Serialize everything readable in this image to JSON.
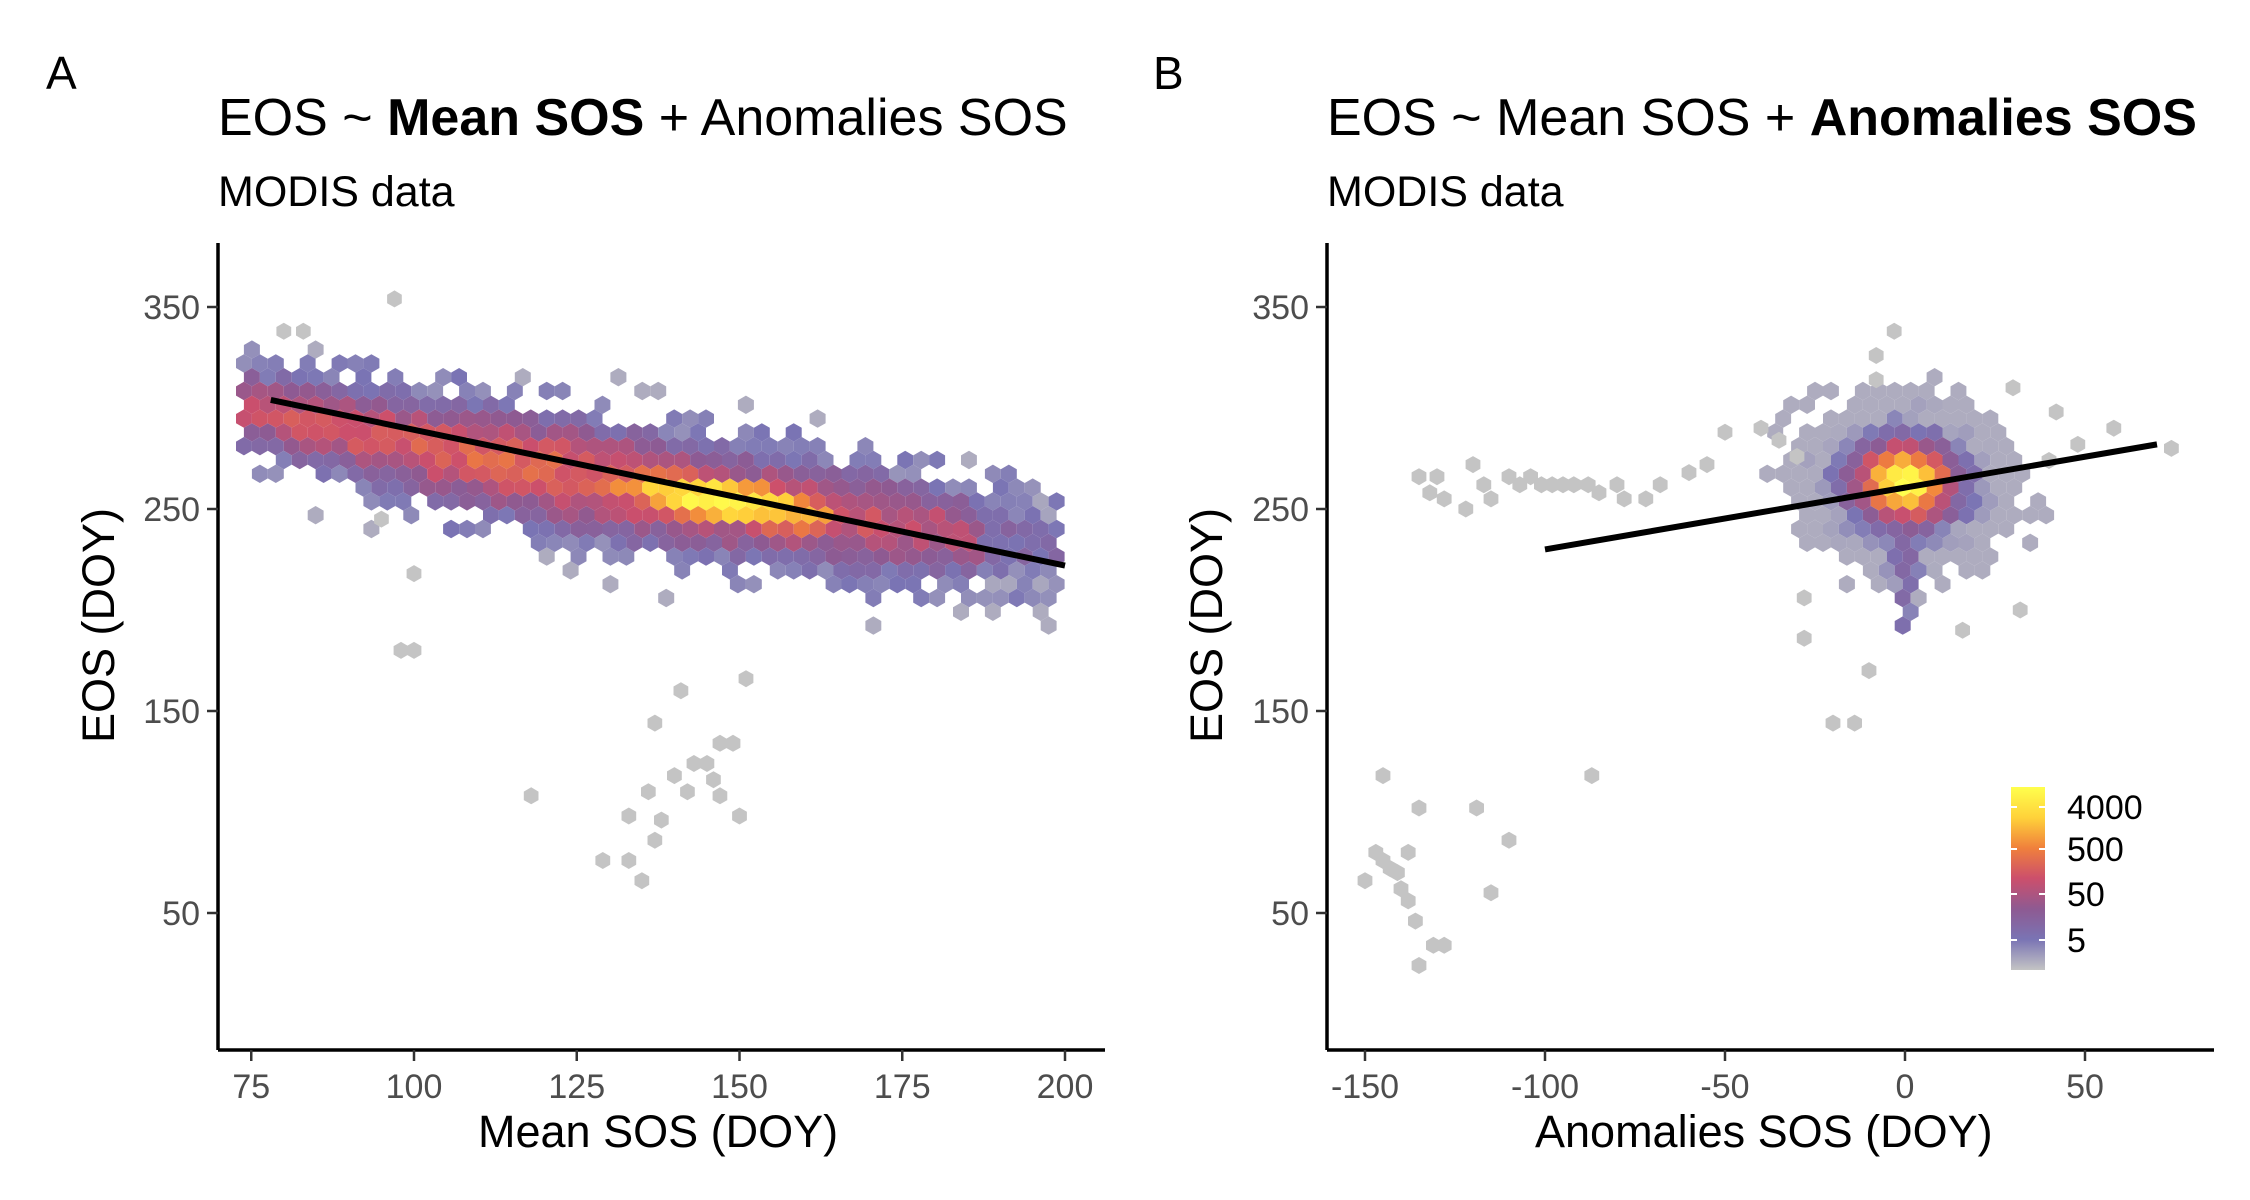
{
  "figure": {
    "panel_a": {
      "letter": "A",
      "title_prefix": "EOS ~ ",
      "title_bold": "Mean SOS",
      "title_suffix": " + Anomalies SOS",
      "subtitle": "MODIS data",
      "xlabel": "Mean SOS (DOY)",
      "ylabel": "EOS (DOY)"
    },
    "panel_b": {
      "letter": "B",
      "title_prefix": "EOS ~ Mean SOS + ",
      "title_bold": "Anomalies SOS",
      "title_suffix": "",
      "subtitle": "MODIS data",
      "xlabel": "Anomalies SOS (DOY)",
      "ylabel": "EOS (DOY)"
    }
  },
  "colorscale": {
    "stops": [
      "#c4c4c4",
      "#7a74b4",
      "#8e5a92",
      "#cc4f6c",
      "#f0803c",
      "#ffd23a",
      "#ffff4d"
    ],
    "tick_labels": [
      "4000",
      "500",
      "50",
      "5"
    ],
    "tick_values": [
      4000,
      500,
      50,
      5
    ],
    "log_scale": true
  },
  "chart_data": [
    {
      "type": "heatmap",
      "subtype": "hexbin-scatter-with-regression",
      "title": "EOS ~ Mean SOS + Anomalies SOS",
      "subtitle": "MODIS data",
      "xlabel": "Mean SOS (DOY)",
      "ylabel": "EOS (DOY)",
      "xlim": [
        72,
        208
      ],
      "ylim": [
        10,
        382
      ],
      "xticks": [
        75,
        100,
        125,
        150,
        175,
        200
      ],
      "yticks": [
        50,
        150,
        250,
        350
      ],
      "grid": false,
      "regression_line": {
        "x": [
          78,
          200
        ],
        "y": [
          304,
          222
        ]
      },
      "density_core": {
        "x": [
          78,
          103,
          125,
          150,
          175
        ],
        "y": [
          285,
          282,
          270,
          255,
          243
        ]
      },
      "sparse_points": [
        {
          "x": 97,
          "y": 354
        },
        {
          "x": 80,
          "y": 338
        },
        {
          "x": 83,
          "y": 338
        },
        {
          "x": 98,
          "y": 180
        },
        {
          "x": 100,
          "y": 180
        },
        {
          "x": 95,
          "y": 245
        },
        {
          "x": 100,
          "y": 218
        },
        {
          "x": 118,
          "y": 108
        },
        {
          "x": 129,
          "y": 76
        },
        {
          "x": 133,
          "y": 76
        },
        {
          "x": 135,
          "y": 66
        },
        {
          "x": 133,
          "y": 98
        },
        {
          "x": 136,
          "y": 110
        },
        {
          "x": 137,
          "y": 86
        },
        {
          "x": 138,
          "y": 96
        },
        {
          "x": 140,
          "y": 118
        },
        {
          "x": 142,
          "y": 110
        },
        {
          "x": 143,
          "y": 124
        },
        {
          "x": 145,
          "y": 124
        },
        {
          "x": 146,
          "y": 116
        },
        {
          "x": 147,
          "y": 108
        },
        {
          "x": 147,
          "y": 134
        },
        {
          "x": 149,
          "y": 134
        },
        {
          "x": 150,
          "y": 98
        },
        {
          "x": 137,
          "y": 144
        },
        {
          "x": 141,
          "y": 160
        },
        {
          "x": 151,
          "y": 166
        }
      ]
    },
    {
      "type": "heatmap",
      "subtype": "hexbin-scatter-with-regression",
      "title": "EOS ~ Mean SOS + Anomalies SOS",
      "subtitle": "MODIS data",
      "xlabel": "Anomalies SOS (DOY)",
      "ylabel": "EOS (DOY)",
      "xlim": [
        -160,
        85
      ],
      "ylim": [
        10,
        382
      ],
      "xticks": [
        -150,
        -100,
        -50,
        0,
        50
      ],
      "yticks": [
        50,
        150,
        250,
        350
      ],
      "grid": false,
      "regression_line": {
        "x": [
          -100,
          70
        ],
        "y": [
          230,
          282
        ]
      },
      "density_core": {
        "x": [
          0
        ],
        "y": [
          263
        ]
      },
      "sparse_points": [
        {
          "x": -135,
          "y": 266
        },
        {
          "x": -132,
          "y": 258
        },
        {
          "x": -130,
          "y": 266
        },
        {
          "x": -128,
          "y": 255
        },
        {
          "x": -122,
          "y": 250
        },
        {
          "x": -120,
          "y": 272
        },
        {
          "x": -117,
          "y": 262
        },
        {
          "x": -115,
          "y": 255
        },
        {
          "x": -110,
          "y": 266
        },
        {
          "x": -107,
          "y": 262
        },
        {
          "x": -104,
          "y": 266
        },
        {
          "x": -101,
          "y": 262
        },
        {
          "x": -98,
          "y": 262
        },
        {
          "x": -95,
          "y": 262
        },
        {
          "x": -92,
          "y": 262
        },
        {
          "x": -88,
          "y": 262
        },
        {
          "x": -85,
          "y": 258
        },
        {
          "x": -80,
          "y": 262
        },
        {
          "x": -78,
          "y": 255
        },
        {
          "x": -72,
          "y": 255
        },
        {
          "x": -68,
          "y": 262
        },
        {
          "x": -60,
          "y": 268
        },
        {
          "x": -55,
          "y": 272
        },
        {
          "x": -50,
          "y": 288
        },
        {
          "x": -40,
          "y": 290
        },
        {
          "x": -35,
          "y": 284
        },
        {
          "x": -30,
          "y": 276
        },
        {
          "x": -28,
          "y": 206
        },
        {
          "x": -28,
          "y": 186
        },
        {
          "x": -20,
          "y": 144
        },
        {
          "x": -14,
          "y": 144
        },
        {
          "x": -10,
          "y": 170
        },
        {
          "x": 16,
          "y": 190
        },
        {
          "x": 32,
          "y": 200
        },
        {
          "x": -8,
          "y": 326
        },
        {
          "x": -8,
          "y": 314
        },
        {
          "x": -3,
          "y": 338
        },
        {
          "x": 30,
          "y": 310
        },
        {
          "x": 42,
          "y": 298
        },
        {
          "x": 58,
          "y": 290
        },
        {
          "x": 74,
          "y": 280
        },
        {
          "x": 48,
          "y": 282
        },
        {
          "x": 40,
          "y": 274
        },
        {
          "x": -150,
          "y": 66
        },
        {
          "x": -147,
          "y": 80
        },
        {
          "x": -145,
          "y": 76
        },
        {
          "x": -143,
          "y": 72
        },
        {
          "x": -141,
          "y": 70
        },
        {
          "x": -140,
          "y": 62
        },
        {
          "x": -138,
          "y": 56
        },
        {
          "x": -136,
          "y": 46
        },
        {
          "x": -135,
          "y": 24
        },
        {
          "x": -131,
          "y": 34
        },
        {
          "x": -128,
          "y": 34
        },
        {
          "x": -138,
          "y": 80
        },
        {
          "x": -135,
          "y": 102
        },
        {
          "x": -145,
          "y": 118
        },
        {
          "x": -119,
          "y": 102
        },
        {
          "x": -115,
          "y": 60
        },
        {
          "x": -110,
          "y": 86
        },
        {
          "x": -87,
          "y": 118
        }
      ]
    }
  ]
}
